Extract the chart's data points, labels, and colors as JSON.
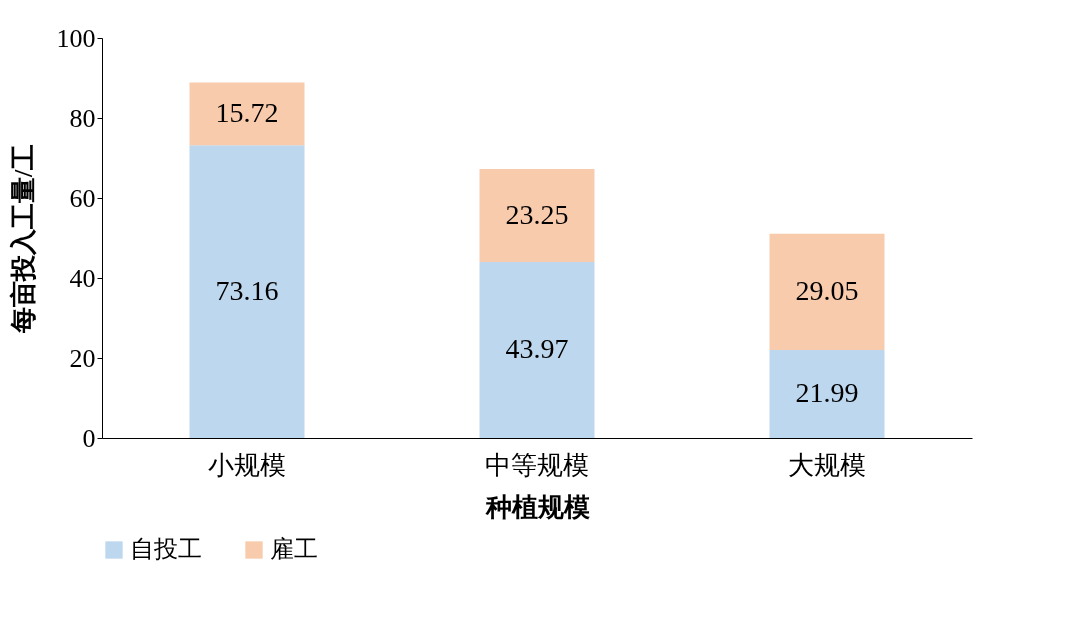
{
  "chart_data": {
    "type": "bar",
    "stacked": true,
    "xlabel": "种植规模",
    "ylabel": "每亩投入工量/工",
    "categories": [
      "小规模",
      "中等规模",
      "大规模"
    ],
    "series": [
      {
        "name": "自投工",
        "color": "#bdd7ee",
        "values": [
          73.16,
          43.97,
          21.99
        ]
      },
      {
        "name": "雇工",
        "color": "#f8cbad",
        "values": [
          15.72,
          23.25,
          29.05
        ]
      }
    ],
    "ylim": [
      0,
      100
    ],
    "yticks": [
      0,
      20,
      40,
      60,
      80,
      100
    ],
    "grid": false,
    "legend": "bottom",
    "data_labels": true
  }
}
